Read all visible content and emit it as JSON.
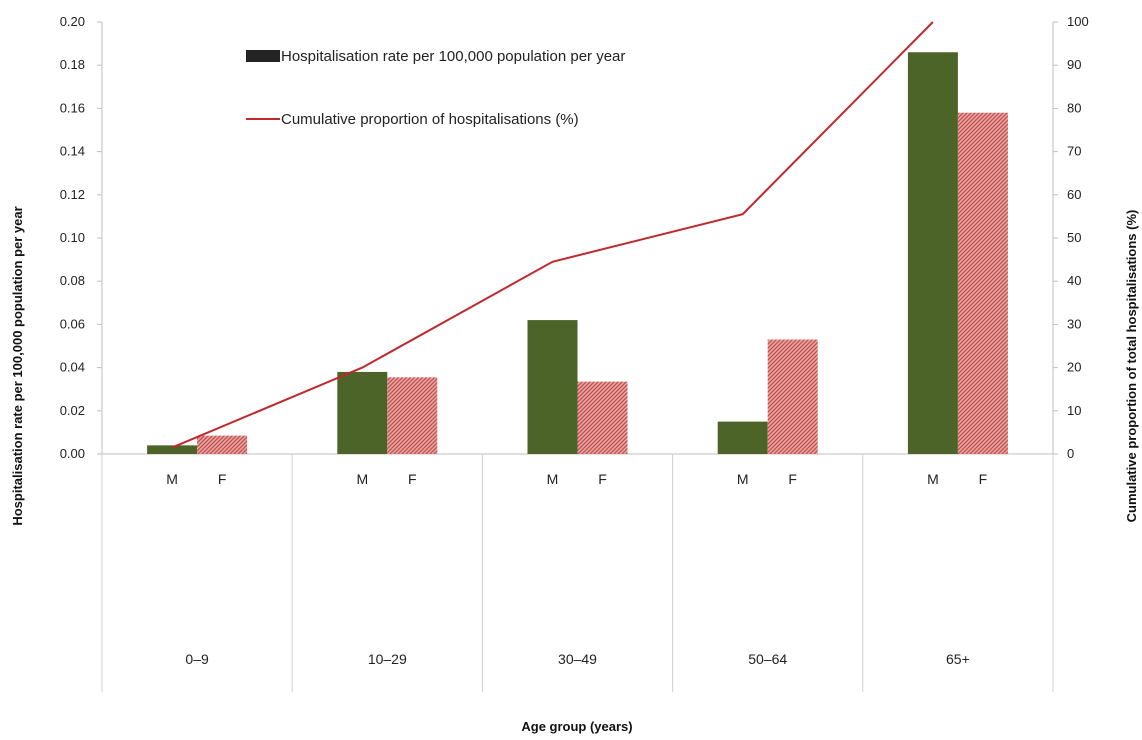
{
  "chart_data": {
    "type": "bar",
    "title": "",
    "xlabel": "Age group (years)",
    "ylabel": "Hospitalisation rate per 100,000 population per year",
    "y2label": "Cumulative proportion of total hospitalisations (%)",
    "ylim": [
      0,
      0.2
    ],
    "y2lim": [
      0,
      100
    ],
    "yticks": [
      "0.00",
      "0.02",
      "0.04",
      "0.06",
      "0.08",
      "0.10",
      "0.12",
      "0.14",
      "0.16",
      "0.18",
      "0.20"
    ],
    "y2ticks": [
      "0",
      "10",
      "20",
      "30",
      "40",
      "50",
      "60",
      "70",
      "80",
      "90",
      "100"
    ],
    "categories": [
      "0–9",
      "10–29",
      "30–49",
      "50–64",
      "65+"
    ],
    "subcategories": [
      "M",
      "F"
    ],
    "series": [
      {
        "name": "M",
        "values": [
          0.004,
          0.038,
          0.062,
          0.015,
          0.186
        ],
        "color": "#4d6429"
      },
      {
        "name": "F",
        "values": [
          0.0085,
          0.0355,
          0.0335,
          0.053,
          0.158
        ],
        "color": "#c0504d"
      }
    ],
    "line_series": {
      "values": [
        1.5,
        20,
        44.5,
        55.5,
        100
      ],
      "color": "#c0282b",
      "axis": "right"
    },
    "legend": [
      {
        "label": "Hospitalisation rate per 100,000 population per year",
        "kind": "bar",
        "color": "#222222"
      },
      {
        "label": "Cumulative proportion of hospitalisations (%)",
        "kind": "line",
        "color": "#c0282b"
      }
    ],
    "legend_position": "top-left",
    "grid": false
  }
}
